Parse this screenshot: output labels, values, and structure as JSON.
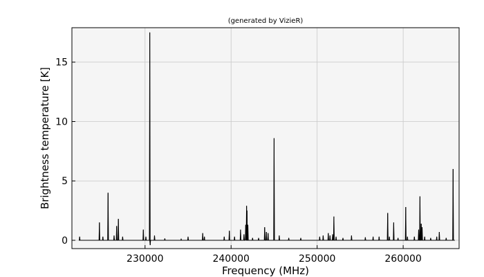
{
  "chart_data": {
    "type": "line",
    "title": "(generated by VizieR)",
    "xlabel": "Frequency (MHz)",
    "ylabel": "Brightness temperature [K]",
    "xlim": [
      221500,
      266500
    ],
    "ylim": [
      -0.7,
      17.9
    ],
    "grid": true,
    "background": "#f5f5f5",
    "line_color": "#000000",
    "x_ticks": [
      {
        "value": 230000,
        "label": "230000"
      },
      {
        "value": 240000,
        "label": "240000"
      },
      {
        "value": 250000,
        "label": "250000"
      },
      {
        "value": 260000,
        "label": "260000"
      }
    ],
    "y_ticks": [
      {
        "value": 0,
        "label": "0"
      },
      {
        "value": 5,
        "label": "5"
      },
      {
        "value": 10,
        "label": "10"
      },
      {
        "value": 15,
        "label": "15"
      }
    ],
    "spectrum_range": [
      222300,
      266000
    ],
    "baseline": 0.0,
    "peaks": [
      {
        "x": 222400,
        "y": 0.3
      },
      {
        "x": 224700,
        "y": 1.5
      },
      {
        "x": 225100,
        "y": 0.3
      },
      {
        "x": 225700,
        "y": 4.0
      },
      {
        "x": 226400,
        "y": 0.4
      },
      {
        "x": 226700,
        "y": 1.2
      },
      {
        "x": 226900,
        "y": 1.8
      },
      {
        "x": 227400,
        "y": 0.3
      },
      {
        "x": 229800,
        "y": 0.9
      },
      {
        "x": 230100,
        "y": 0.3
      },
      {
        "x": 230550,
        "y": 17.5
      },
      {
        "x": 230600,
        "y": -0.4
      },
      {
        "x": 231100,
        "y": 0.4
      },
      {
        "x": 232300,
        "y": 0.15
      },
      {
        "x": 234200,
        "y": 0.1
      },
      {
        "x": 235000,
        "y": 0.3
      },
      {
        "x": 236700,
        "y": 0.6
      },
      {
        "x": 236900,
        "y": 0.3
      },
      {
        "x": 239200,
        "y": 0.3
      },
      {
        "x": 239800,
        "y": 0.8
      },
      {
        "x": 240400,
        "y": 0.3
      },
      {
        "x": 241100,
        "y": 0.9
      },
      {
        "x": 241500,
        "y": 0.5
      },
      {
        "x": 241700,
        "y": 1.3
      },
      {
        "x": 241800,
        "y": 2.9
      },
      {
        "x": 241850,
        "y": 2.5
      },
      {
        "x": 241950,
        "y": 1.3
      },
      {
        "x": 242500,
        "y": 0.2
      },
      {
        "x": 243200,
        "y": 0.2
      },
      {
        "x": 243900,
        "y": 1.1
      },
      {
        "x": 244100,
        "y": 0.7
      },
      {
        "x": 244300,
        "y": 0.6
      },
      {
        "x": 245000,
        "y": 8.6
      },
      {
        "x": 245600,
        "y": 0.4
      },
      {
        "x": 246700,
        "y": 0.2
      },
      {
        "x": 248100,
        "y": 0.2
      },
      {
        "x": 250300,
        "y": 0.3
      },
      {
        "x": 250700,
        "y": 0.4
      },
      {
        "x": 251300,
        "y": 0.6
      },
      {
        "x": 251500,
        "y": 0.4
      },
      {
        "x": 251800,
        "y": 0.5
      },
      {
        "x": 251950,
        "y": 2.0
      },
      {
        "x": 252200,
        "y": 0.3
      },
      {
        "x": 253000,
        "y": 0.2
      },
      {
        "x": 254000,
        "y": 0.4
      },
      {
        "x": 255600,
        "y": 0.25
      },
      {
        "x": 256500,
        "y": 0.3
      },
      {
        "x": 257200,
        "y": 0.3
      },
      {
        "x": 258200,
        "y": 2.3
      },
      {
        "x": 258400,
        "y": 0.3
      },
      {
        "x": 258900,
        "y": 1.5
      },
      {
        "x": 259400,
        "y": 0.2
      },
      {
        "x": 260300,
        "y": 2.8
      },
      {
        "x": 260500,
        "y": 0.3
      },
      {
        "x": 261300,
        "y": 0.3
      },
      {
        "x": 261800,
        "y": 0.9
      },
      {
        "x": 261950,
        "y": 3.7
      },
      {
        "x": 262100,
        "y": 1.4
      },
      {
        "x": 262200,
        "y": 1.1
      },
      {
        "x": 262500,
        "y": 0.3
      },
      {
        "x": 263200,
        "y": 0.2
      },
      {
        "x": 263900,
        "y": 0.3
      },
      {
        "x": 264200,
        "y": 0.7
      },
      {
        "x": 265000,
        "y": 0.2
      },
      {
        "x": 265800,
        "y": 6.0
      }
    ]
  }
}
